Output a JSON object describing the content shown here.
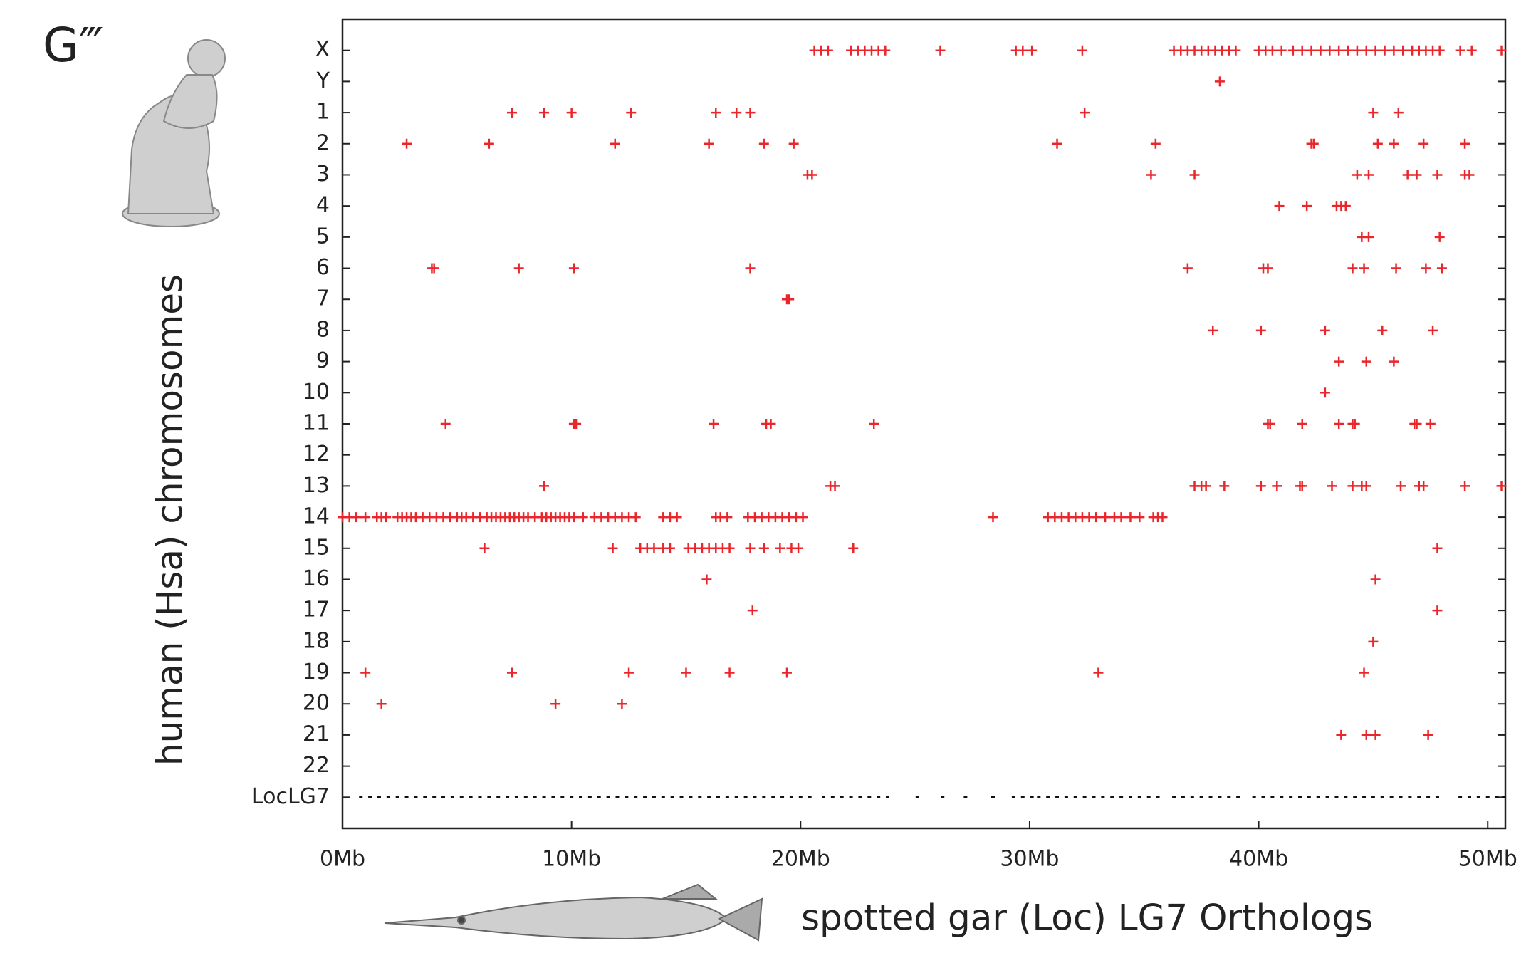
{
  "chart_data": {
    "type": "scatter",
    "panel_label": "G‴",
    "y_label": "human (Hsa) chromosomes",
    "x_label": "spotted gar (Loc) LG7 Orthologs",
    "xlim": [
      0,
      50.77
    ],
    "xticks": [
      {
        "value": 0,
        "label": "0Mb"
      },
      {
        "value": 10,
        "label": "10Mb"
      },
      {
        "value": 20,
        "label": "20Mb"
      },
      {
        "value": 30,
        "label": "30Mb"
      },
      {
        "value": 40,
        "label": "40Mb"
      },
      {
        "value": 50,
        "label": "50Mb"
      }
    ],
    "rows": [
      {
        "label": "X",
        "color": "#e8262b",
        "x": [
          20.6,
          20.9,
          21.2,
          22.2,
          22.5,
          22.8,
          23.1,
          23.4,
          23.7,
          26.1,
          29.4,
          29.7,
          30.1,
          32.3,
          36.3,
          36.6,
          36.9,
          37.2,
          37.5,
          37.8,
          38.1,
          38.4,
          38.7,
          39.0,
          40.0,
          40.3,
          40.6,
          41.0,
          41.5,
          41.9,
          42.3,
          42.7,
          43.1,
          43.5,
          43.9,
          44.3,
          44.7,
          45.1,
          45.5,
          45.9,
          46.3,
          46.7,
          47.0,
          47.3,
          47.6,
          47.9,
          48.8,
          49.3,
          50.6
        ]
      },
      {
        "label": "Y",
        "color": "#e8262b",
        "x": [
          38.3
        ]
      },
      {
        "label": "1",
        "color": "#e8262b",
        "x": [
          7.4,
          8.8,
          10.0,
          12.6,
          16.3,
          17.2,
          17.8,
          32.4,
          45.0,
          46.1
        ]
      },
      {
        "label": "2",
        "color": "#e8262b",
        "x": [
          2.8,
          6.4,
          11.9,
          16.0,
          18.4,
          19.7,
          31.2,
          35.5,
          42.3,
          42.4,
          45.2,
          45.9,
          47.2,
          49.0
        ]
      },
      {
        "label": "3",
        "color": "#e8262b",
        "x": [
          20.3,
          20.5,
          35.3,
          37.2,
          44.3,
          44.8,
          46.5,
          46.9,
          47.8,
          49.0,
          49.2
        ]
      },
      {
        "label": "4",
        "color": "#e8262b",
        "x": [
          40.9,
          42.1,
          43.4,
          43.6,
          43.8
        ]
      },
      {
        "label": "5",
        "color": "#e8262b",
        "x": [
          44.5,
          44.8,
          47.9
        ]
      },
      {
        "label": "6",
        "color": "#e8262b",
        "x": [
          3.9,
          4.0,
          7.7,
          10.1,
          17.8,
          36.9,
          40.2,
          40.4,
          44.1,
          44.6,
          46.0,
          47.3,
          48.0
        ]
      },
      {
        "label": "7",
        "color": "#e8262b",
        "x": [
          19.4,
          19.5
        ]
      },
      {
        "label": "8",
        "color": "#e8262b",
        "x": [
          38.0,
          40.1,
          42.9,
          45.4,
          47.6
        ]
      },
      {
        "label": "9",
        "color": "#e8262b",
        "x": [
          43.5,
          44.7,
          45.9
        ]
      },
      {
        "label": "10",
        "color": "#e8262b",
        "x": [
          42.9
        ]
      },
      {
        "label": "11",
        "color": "#e8262b",
        "x": [
          4.5,
          10.1,
          10.2,
          16.2,
          18.5,
          18.7,
          23.2,
          40.4,
          40.5,
          41.9,
          43.5,
          44.1,
          44.2,
          46.8,
          46.9,
          47.5
        ]
      },
      {
        "label": "12",
        "color": "#e8262b",
        "x": []
      },
      {
        "label": "13",
        "color": "#e8262b",
        "x": [
          8.8,
          21.3,
          21.5,
          37.2,
          37.5,
          37.7,
          38.5,
          40.1,
          40.8,
          41.8,
          41.9,
          43.2,
          44.1,
          44.5,
          44.7,
          46.2,
          47.0,
          47.2,
          49.0,
          50.6
        ]
      },
      {
        "label": "14",
        "color": "#e8262b",
        "x": [
          0,
          0.3,
          0.6,
          1.0,
          1.5,
          1.7,
          1.9,
          2.4,
          2.6,
          2.8,
          3.0,
          3.2,
          3.5,
          3.8,
          4.1,
          4.4,
          4.7,
          5.0,
          5.2,
          5.4,
          5.7,
          6.0,
          6.3,
          6.5,
          6.7,
          6.9,
          7.1,
          7.3,
          7.5,
          7.7,
          7.9,
          8.1,
          8.4,
          8.7,
          8.9,
          9.1,
          9.3,
          9.5,
          9.7,
          9.9,
          10.1,
          10.5,
          11.0,
          11.3,
          11.6,
          11.9,
          12.2,
          12.5,
          12.8,
          14.0,
          14.3,
          14.6,
          16.3,
          16.5,
          16.8,
          17.7,
          18.0,
          18.3,
          18.6,
          18.9,
          19.2,
          19.5,
          19.8,
          20.1,
          28.4,
          30.8,
          31.1,
          31.4,
          31.7,
          32.0,
          32.3,
          32.6,
          32.9,
          33.3,
          33.7,
          34.0,
          34.4,
          34.8,
          35.4,
          35.6,
          35.8
        ]
      },
      {
        "label": "15",
        "color": "#e8262b",
        "x": [
          6.2,
          11.8,
          13.0,
          13.3,
          13.6,
          14.0,
          14.3,
          15.1,
          15.4,
          15.7,
          16.0,
          16.3,
          16.6,
          16.9,
          17.8,
          18.4,
          19.1,
          19.6,
          19.9,
          22.3,
          47.8
        ]
      },
      {
        "label": "16",
        "color": "#e8262b",
        "x": [
          15.9,
          45.1
        ]
      },
      {
        "label": "17",
        "color": "#e8262b",
        "x": [
          17.9,
          47.8
        ]
      },
      {
        "label": "18",
        "color": "#e8262b",
        "x": [
          45.0
        ]
      },
      {
        "label": "19",
        "color": "#e8262b",
        "x": [
          1.0,
          7.4,
          12.5,
          15.0,
          16.9,
          19.4,
          33.0,
          44.6
        ]
      },
      {
        "label": "20",
        "color": "#e8262b",
        "x": [
          1.7,
          9.3,
          12.2
        ]
      },
      {
        "label": "21",
        "color": "#e8262b",
        "x": [
          43.6,
          44.7,
          45.1,
          47.4
        ]
      },
      {
        "label": "22",
        "color": "#e8262b",
        "x": []
      },
      {
        "label": "LocLG7",
        "color": "#111111",
        "x": [
          0.8,
          1.2,
          1.6,
          2.0,
          2.4,
          2.8,
          3.2,
          3.6,
          4.0,
          4.4,
          4.8,
          5.2,
          5.6,
          6.0,
          6.4,
          6.8,
          7.2,
          7.6,
          8.0,
          8.4,
          8.8,
          9.2,
          9.6,
          10.0,
          10.4,
          10.8,
          11.2,
          11.6,
          12.0,
          12.4,
          12.8,
          13.2,
          13.6,
          14.0,
          14.4,
          14.8,
          15.2,
          15.6,
          16.0,
          16.4,
          16.8,
          17.2,
          17.6,
          18.0,
          18.4,
          18.8,
          19.2,
          19.6,
          20.0,
          20.4,
          21.0,
          21.4,
          21.8,
          22.2,
          22.6,
          23.0,
          23.4,
          23.8,
          25.1,
          26.2,
          27.2,
          28.4,
          29.3,
          29.7,
          30.1,
          30.4,
          30.8,
          31.2,
          31.6,
          32.0,
          32.4,
          32.8,
          33.2,
          33.6,
          34.0,
          34.4,
          34.8,
          35.2,
          35.6,
          36.3,
          36.7,
          37.1,
          37.5,
          37.9,
          38.3,
          38.7,
          39.1,
          39.8,
          40.2,
          40.6,
          41.0,
          41.4,
          41.8,
          42.2,
          42.6,
          43.0,
          43.4,
          43.8,
          44.2,
          44.6,
          45.0,
          45.4,
          45.8,
          46.2,
          46.6,
          47.0,
          47.4,
          47.8,
          48.8,
          49.2,
          49.6,
          50.0,
          50.4,
          50.7
        ]
      }
    ]
  }
}
